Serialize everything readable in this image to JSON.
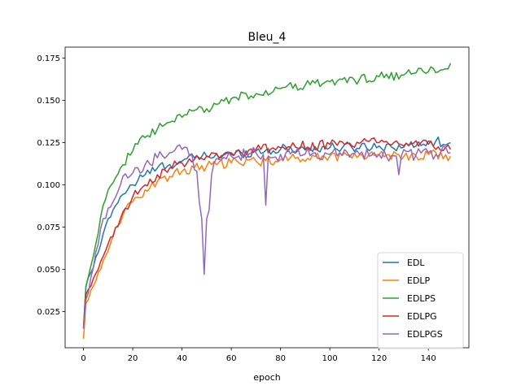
{
  "chart_data": {
    "type": "line",
    "title": "Bleu_4",
    "xlabel": "epoch",
    "ylabel": "",
    "xlim": [
      -7.45,
      156.45
    ],
    "ylim": [
      0.0036,
      0.1815
    ],
    "xticks": [
      0,
      20,
      40,
      60,
      80,
      100,
      120,
      140
    ],
    "yticks": [
      0.025,
      0.05,
      0.075,
      0.1,
      0.125,
      0.15,
      0.175
    ],
    "ytick_labels": [
      "0.025",
      "0.050",
      "0.075",
      "0.100",
      "0.125",
      "0.150",
      "0.175"
    ],
    "grid": false,
    "legend_position": "lower right",
    "series": [
      {
        "name": "EDL",
        "color": "#1f77b4",
        "anchors": [
          [
            0,
            0.016
          ],
          [
            1,
            0.04
          ],
          [
            3,
            0.048
          ],
          [
            6,
            0.06
          ],
          [
            10,
            0.08
          ],
          [
            15,
            0.093
          ],
          [
            20,
            0.1
          ],
          [
            25,
            0.106
          ],
          [
            30,
            0.11
          ],
          [
            35,
            0.112
          ],
          [
            40,
            0.114
          ],
          [
            45,
            0.116
          ],
          [
            50,
            0.117
          ],
          [
            60,
            0.118
          ],
          [
            70,
            0.12
          ],
          [
            80,
            0.121
          ],
          [
            100,
            0.122
          ],
          [
            120,
            0.123
          ],
          [
            135,
            0.123
          ],
          [
            140,
            0.126
          ],
          [
            149,
            0.125
          ]
        ],
        "noise": 0.003
      },
      {
        "name": "EDLP",
        "color": "#ff7f0e",
        "anchors": [
          [
            0,
            0.009
          ],
          [
            1,
            0.03
          ],
          [
            4,
            0.04
          ],
          [
            8,
            0.055
          ],
          [
            12,
            0.07
          ],
          [
            16,
            0.082
          ],
          [
            20,
            0.09
          ],
          [
            25,
            0.097
          ],
          [
            30,
            0.102
          ],
          [
            35,
            0.105
          ],
          [
            40,
            0.108
          ],
          [
            45,
            0.11
          ],
          [
            50,
            0.111
          ],
          [
            60,
            0.113
          ],
          [
            70,
            0.114
          ],
          [
            80,
            0.115
          ],
          [
            100,
            0.117
          ],
          [
            120,
            0.118
          ],
          [
            135,
            0.117
          ],
          [
            140,
            0.118
          ],
          [
            149,
            0.117
          ]
        ],
        "noise": 0.003
      },
      {
        "name": "EDLPS",
        "color": "#2ca02c",
        "anchors": [
          [
            0,
            0.015
          ],
          [
            1,
            0.04
          ],
          [
            3,
            0.052
          ],
          [
            5,
            0.065
          ],
          [
            8,
            0.088
          ],
          [
            10,
            0.097
          ],
          [
            15,
            0.11
          ],
          [
            20,
            0.12
          ],
          [
            25,
            0.128
          ],
          [
            30,
            0.133
          ],
          [
            35,
            0.137
          ],
          [
            40,
            0.14
          ],
          [
            45,
            0.144
          ],
          [
            50,
            0.145
          ],
          [
            55,
            0.148
          ],
          [
            60,
            0.151
          ],
          [
            70,
            0.154
          ],
          [
            80,
            0.157
          ],
          [
            90,
            0.159
          ],
          [
            100,
            0.161
          ],
          [
            110,
            0.162
          ],
          [
            120,
            0.164
          ],
          [
            130,
            0.165
          ],
          [
            140,
            0.167
          ],
          [
            145,
            0.168
          ],
          [
            149,
            0.172
          ]
        ],
        "noise": 0.0028
      },
      {
        "name": "EDLPG",
        "color": "#d62728",
        "anchors": [
          [
            0,
            0.015
          ],
          [
            1,
            0.035
          ],
          [
            3,
            0.04
          ],
          [
            6,
            0.05
          ],
          [
            10,
            0.065
          ],
          [
            15,
            0.08
          ],
          [
            20,
            0.093
          ],
          [
            25,
            0.1
          ],
          [
            30,
            0.106
          ],
          [
            35,
            0.11
          ],
          [
            40,
            0.113
          ],
          [
            45,
            0.115
          ],
          [
            50,
            0.117
          ],
          [
            60,
            0.119
          ],
          [
            70,
            0.121
          ],
          [
            80,
            0.122
          ],
          [
            100,
            0.124
          ],
          [
            120,
            0.125
          ],
          [
            140,
            0.124
          ],
          [
            149,
            0.121
          ]
        ],
        "noise": 0.003
      },
      {
        "name": "EDLPGS",
        "color": "#9467bd",
        "anchors": [
          [
            0,
            0.015
          ],
          [
            1,
            0.032
          ],
          [
            3,
            0.045
          ],
          [
            6,
            0.065
          ],
          [
            8,
            0.08
          ],
          [
            12,
            0.09
          ],
          [
            15,
            0.1
          ],
          [
            20,
            0.107
          ],
          [
            25,
            0.112
          ],
          [
            30,
            0.116
          ],
          [
            35,
            0.119
          ],
          [
            40,
            0.121
          ],
          [
            42,
            0.122
          ],
          [
            44,
            0.118
          ],
          [
            46,
            0.108
          ],
          [
            47,
            0.09
          ],
          [
            48,
            0.08
          ],
          [
            49,
            0.047
          ],
          [
            50,
            0.08
          ],
          [
            51,
            0.085
          ],
          [
            52,
            0.106
          ],
          [
            53,
            0.113
          ],
          [
            55,
            0.115
          ],
          [
            60,
            0.117
          ],
          [
            70,
            0.119
          ],
          [
            73,
            0.118
          ],
          [
            74,
            0.088
          ],
          [
            75,
            0.117
          ],
          [
            80,
            0.118
          ],
          [
            100,
            0.118
          ],
          [
            120,
            0.118
          ],
          [
            127,
            0.117
          ],
          [
            128,
            0.106
          ],
          [
            129,
            0.117
          ],
          [
            140,
            0.119
          ],
          [
            149,
            0.119
          ]
        ],
        "noise": 0.004
      }
    ]
  }
}
